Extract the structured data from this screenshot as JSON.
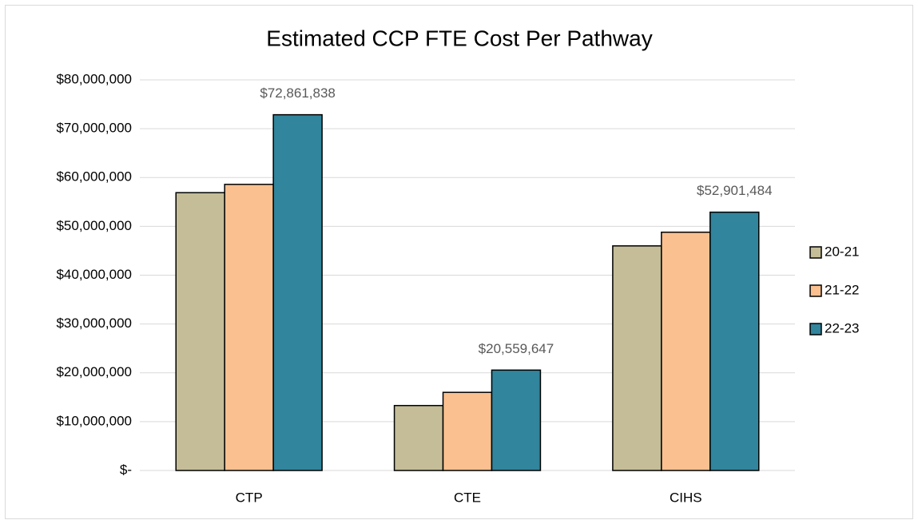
{
  "chart_data": {
    "type": "bar",
    "title": "Estimated CCP FTE Cost Per Pathway",
    "categories": [
      "CTP",
      "CTE",
      "CIHS"
    ],
    "series": [
      {
        "name": "20-21",
        "color": "#c4bd97",
        "values": [
          56900000,
          13300000,
          46000000
        ]
      },
      {
        "name": "21-22",
        "color": "#fac090",
        "values": [
          58600000,
          16000000,
          48800000
        ]
      },
      {
        "name": "22-23",
        "color": "#31859c",
        "values": [
          72861838,
          20559647,
          52901484
        ],
        "value_labels": [
          "$72,861,838",
          "$20,559,647",
          "$52,901,484"
        ]
      }
    ],
    "ylim": [
      0,
      80000000
    ],
    "yticks": [
      {
        "value": 0,
        "label": "$-"
      },
      {
        "value": 10000000,
        "label": "$10,000,000"
      },
      {
        "value": 20000000,
        "label": "$20,000,000"
      },
      {
        "value": 30000000,
        "label": "$30,000,000"
      },
      {
        "value": 40000000,
        "label": "$40,000,000"
      },
      {
        "value": 50000000,
        "label": "$50,000,000"
      },
      {
        "value": 60000000,
        "label": "$60,000,000"
      },
      {
        "value": 70000000,
        "label": "$70,000,000"
      },
      {
        "value": 80000000,
        "label": "$80,000,000"
      }
    ],
    "grid": true,
    "legend": "right"
  }
}
